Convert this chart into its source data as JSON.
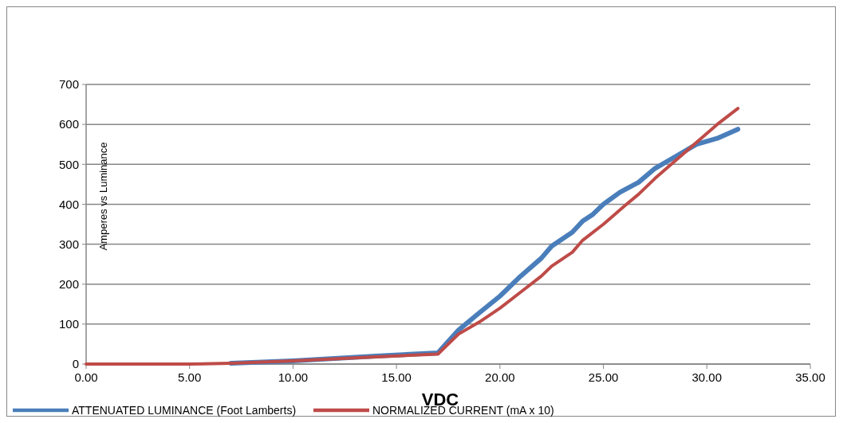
{
  "chart_data": {
    "type": "line",
    "xlabel": "VDC",
    "ylabel": "Amperes  vs Luminance",
    "xlim": [
      0,
      35
    ],
    "xticks": [
      {
        "value": 0,
        "label": "0.00"
      },
      {
        "value": 5,
        "label": "5.00"
      },
      {
        "value": 10,
        "label": "10.00"
      },
      {
        "value": 15,
        "label": "15.00"
      },
      {
        "value": 20,
        "label": "20.00"
      },
      {
        "value": 25,
        "label": "25.00"
      },
      {
        "value": 30,
        "label": "30.00"
      },
      {
        "value": 35,
        "label": "35.00"
      }
    ],
    "ylim": [
      0,
      700
    ],
    "yticks": [
      0,
      100,
      200,
      300,
      400,
      500,
      600,
      700
    ],
    "grid": "y",
    "legend": "bottom",
    "marker": "none",
    "line_style": "solid",
    "series": [
      {
        "name": "ATTENUATED LUMINANCE (Foot Lamberts)",
        "color": "#4a7ebb",
        "x": [
          7,
          10,
          14,
          17,
          18,
          19,
          20,
          21,
          22,
          22.5,
          23.5,
          24,
          24.5,
          25,
          25.8,
          26.7,
          27.5,
          28.5,
          29.5,
          30.5,
          31.5
        ],
        "values": [
          2,
          8,
          20,
          28,
          85,
          128,
          170,
          220,
          265,
          295,
          330,
          358,
          375,
          400,
          430,
          455,
          490,
          520,
          550,
          565,
          588
        ]
      },
      {
        "name": "NORMALIZED CURRENT (mA x 10)",
        "color": "#be4b48",
        "x": [
          0,
          5,
          7,
          10,
          14,
          17,
          18,
          19,
          20,
          21,
          22,
          22.5,
          23.5,
          24,
          25,
          26,
          26.7,
          27.5,
          28.5,
          29.5,
          30.5,
          31.5
        ],
        "values": [
          0,
          0,
          2,
          8,
          18,
          25,
          75,
          105,
          140,
          180,
          220,
          245,
          280,
          310,
          350,
          395,
          425,
          465,
          510,
          555,
          600,
          640
        ]
      }
    ]
  }
}
